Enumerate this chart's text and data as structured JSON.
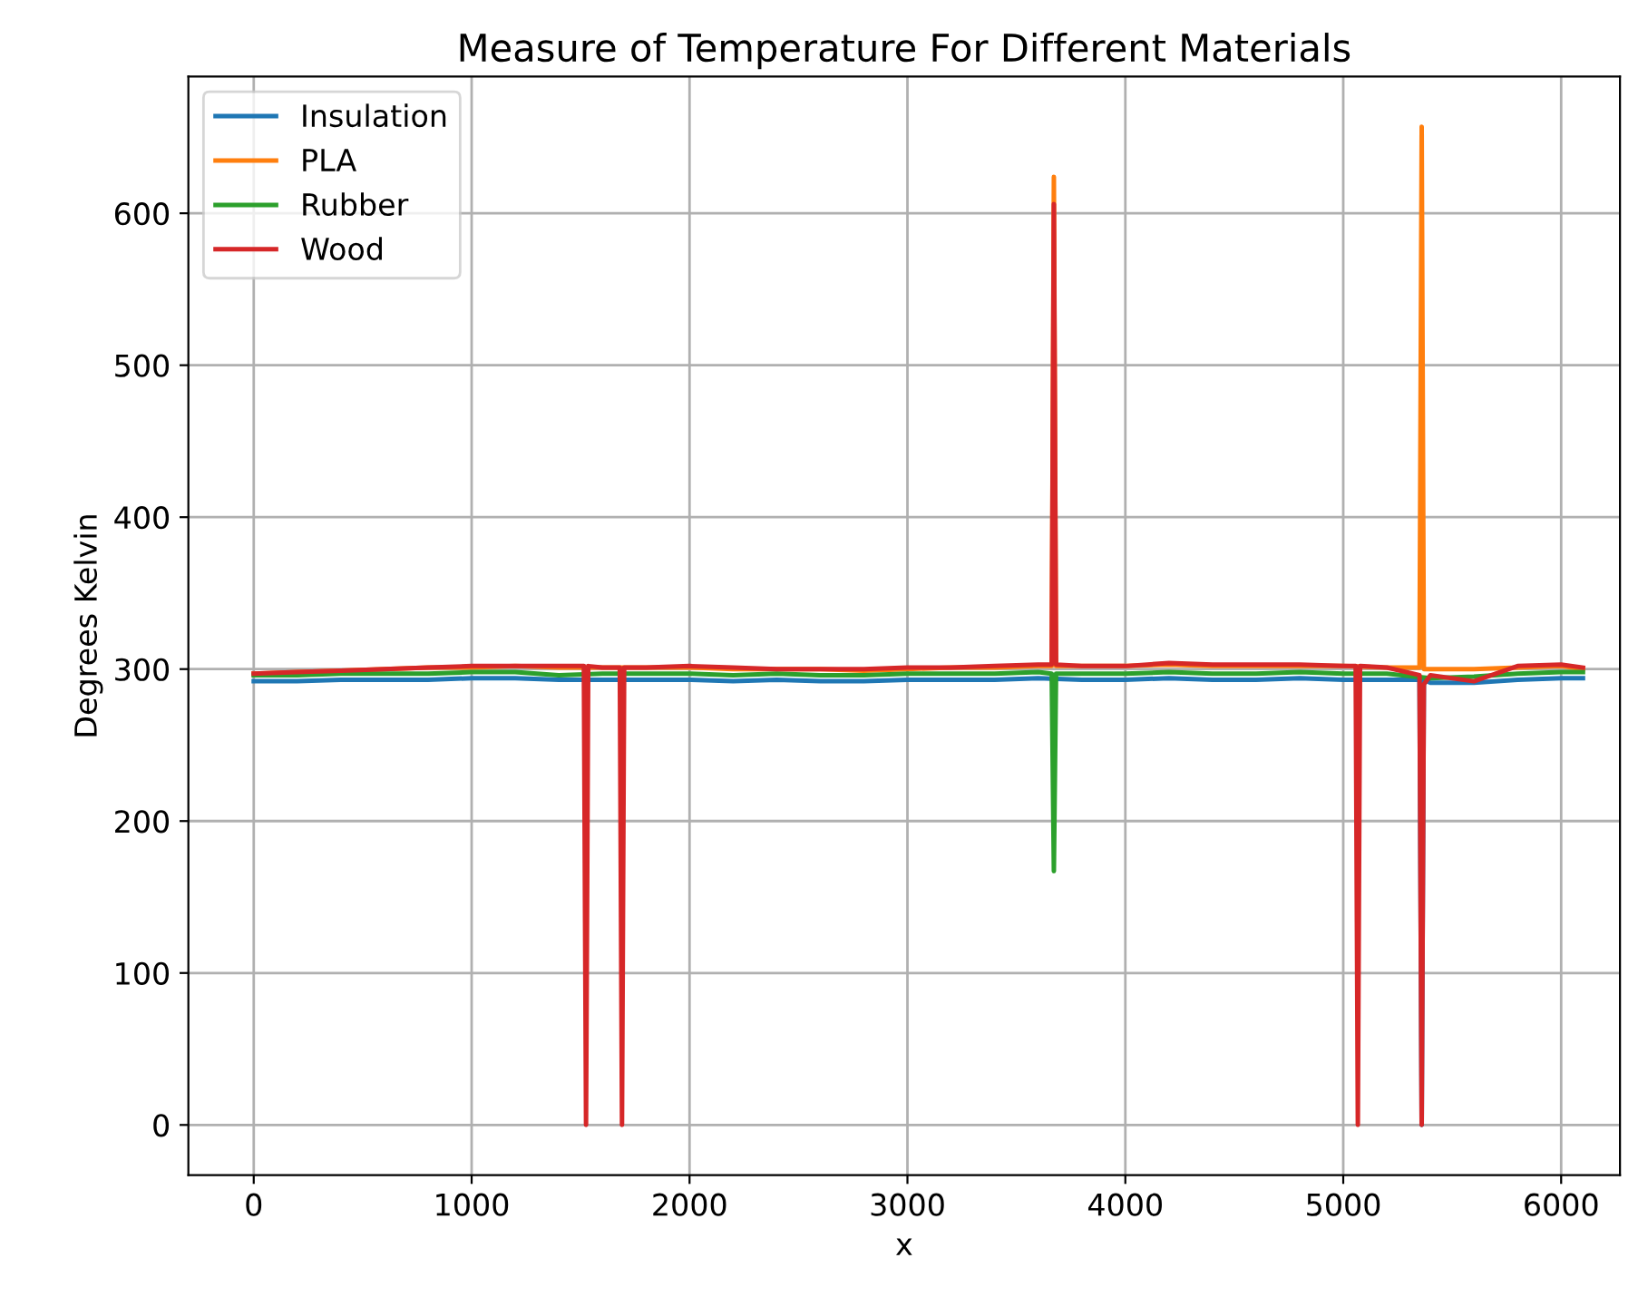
{
  "chart_data": {
    "type": "line",
    "title": "Measure of Temperature For Different Materials",
    "xlabel": "x",
    "ylabel": "Degrees Kelvin",
    "xlim": [
      -300,
      6270
    ],
    "ylim": [
      -33,
      690
    ],
    "xticks": [
      0,
      1000,
      2000,
      3000,
      4000,
      5000,
      6000
    ],
    "yticks": [
      0,
      100,
      200,
      300,
      400,
      500,
      600
    ],
    "grid": true,
    "legend": "top left",
    "line_style": "solid",
    "marker": "none",
    "series": [
      {
        "name": "Insulation",
        "color": "#1f77b4",
        "x": [
          0,
          200,
          400,
          600,
          800,
          1000,
          1200,
          1400,
          1600,
          1800,
          2000,
          2200,
          2400,
          2600,
          2800,
          3000,
          3200,
          3400,
          3600,
          3800,
          4000,
          4200,
          4400,
          4600,
          4800,
          5000,
          5200,
          5350,
          5360,
          5370,
          5400,
          5600,
          5800,
          6000,
          6100
        ],
        "values": [
          292,
          292,
          293,
          293,
          293,
          294,
          294,
          293,
          293,
          293,
          293,
          292,
          293,
          292,
          292,
          293,
          293,
          293,
          294,
          293,
          293,
          294,
          293,
          293,
          294,
          293,
          293,
          293,
          0,
          293,
          291,
          291,
          293,
          294,
          294
        ]
      },
      {
        "name": "PLA",
        "color": "#ff7f0e",
        "x": [
          0,
          200,
          400,
          600,
          800,
          1000,
          1200,
          1400,
          1600,
          1800,
          2000,
          2200,
          2400,
          2600,
          2800,
          3000,
          3200,
          3400,
          3600,
          3662,
          3672,
          3682,
          3800,
          4000,
          4200,
          4400,
          4600,
          4800,
          5000,
          5200,
          5350,
          5360,
          5370,
          5400,
          5600,
          5800,
          6000,
          6100
        ],
        "values": [
          297,
          298,
          299,
          300,
          301,
          301,
          302,
          301,
          301,
          301,
          301,
          300,
          300,
          300,
          299,
          300,
          301,
          301,
          302,
          302,
          624,
          302,
          302,
          302,
          303,
          302,
          302,
          302,
          302,
          301,
          301,
          657,
          300,
          300,
          300,
          301,
          302,
          300
        ]
      },
      {
        "name": "Rubber",
        "color": "#2ca02c",
        "x": [
          0,
          200,
          400,
          600,
          800,
          1000,
          1200,
          1400,
          1600,
          1800,
          2000,
          2200,
          2400,
          2600,
          2800,
          3000,
          3200,
          3400,
          3600,
          3662,
          3672,
          3682,
          3800,
          4000,
          4200,
          4400,
          4600,
          4800,
          5000,
          5200,
          5400,
          5600,
          5800,
          6000,
          6100
        ],
        "values": [
          296,
          296,
          297,
          297,
          297,
          298,
          298,
          296,
          297,
          297,
          297,
          296,
          297,
          296,
          296,
          297,
          297,
          297,
          298,
          297,
          167,
          297,
          297,
          297,
          298,
          297,
          297,
          298,
          297,
          297,
          294,
          295,
          297,
          298,
          298
        ]
      },
      {
        "name": "Wood",
        "color": "#d62728",
        "x": [
          0,
          200,
          400,
          600,
          800,
          1000,
          1200,
          1400,
          1515,
          1525,
          1535,
          1600,
          1680,
          1690,
          1700,
          1800,
          2000,
          2200,
          2400,
          2600,
          2800,
          3000,
          3200,
          3400,
          3600,
          3662,
          3672,
          3682,
          3800,
          4000,
          4200,
          4400,
          4600,
          4800,
          5000,
          5057,
          5067,
          5077,
          5200,
          5350,
          5360,
          5370,
          5400,
          5600,
          5800,
          6000,
          6100
        ],
        "values": [
          297,
          298,
          299,
          300,
          301,
          302,
          302,
          302,
          302,
          0,
          302,
          301,
          301,
          0,
          301,
          301,
          302,
          301,
          300,
          300,
          300,
          301,
          301,
          302,
          303,
          303,
          606,
          303,
          302,
          302,
          304,
          303,
          303,
          303,
          302,
          302,
          0,
          302,
          301,
          296,
          0,
          290,
          296,
          292,
          302,
          303,
          301
        ]
      }
    ]
  }
}
